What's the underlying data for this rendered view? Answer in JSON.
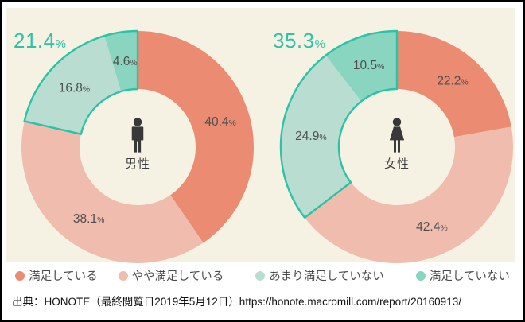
{
  "unit": "%",
  "palette": {
    "panel_background": "#F6F2E3",
    "satisfied": "#EB8B71",
    "somewhat_satisfied": "#EFBCAD",
    "not_very_satisfied": "#BADDD2",
    "not_satisfied": "#89D5C0",
    "highlight_outline": "#2BC3A5",
    "highlight_text": "#2EC3A5",
    "segment_label_text": "#4E4E4E",
    "icon_color": "#383838"
  },
  "chart_data": [
    {
      "type": "pie",
      "variant": "donut",
      "group_label": "男性",
      "icon": "male-icon",
      "start": "top",
      "direction": "clockwise",
      "segments": [
        {
          "label": "満足している",
          "value": 40.4,
          "color": "#EB8B71"
        },
        {
          "label": "やや満足している",
          "value": 38.1,
          "color": "#EFBCAD"
        },
        {
          "label": "あまり満足していない",
          "value": 16.8,
          "color": "#BADDD2"
        },
        {
          "label": "満足していない",
          "value": 4.6,
          "color": "#89D5C0"
        }
      ],
      "highlight": {
        "value": 21.4,
        "covers_last_n_segments": 2,
        "outline_color": "#2BC3A5"
      }
    },
    {
      "type": "pie",
      "variant": "donut",
      "group_label": "女性",
      "icon": "female-icon",
      "start": "top",
      "direction": "clockwise",
      "segments": [
        {
          "label": "満足している",
          "value": 22.2,
          "color": "#EB8B71"
        },
        {
          "label": "やや満足している",
          "value": 42.4,
          "color": "#EFBCAD"
        },
        {
          "label": "あまり満足していない",
          "value": 24.9,
          "color": "#BADDD2"
        },
        {
          "label": "満足していない",
          "value": 10.5,
          "color": "#89D5C0"
        }
      ],
      "highlight": {
        "value": 35.3,
        "covers_last_n_segments": 2,
        "outline_color": "#2BC3A5"
      }
    }
  ],
  "legend": {
    "items": [
      {
        "label": "満足している",
        "color": "#EB8B71"
      },
      {
        "label": "やや満足している",
        "color": "#EFBCAD"
      },
      {
        "label": "あまり満足していない",
        "color": "#BADDD2"
      },
      {
        "label": "満足していない",
        "color": "#89D5C0"
      }
    ]
  },
  "source": {
    "text": "出典：HONOTE（最終閲覧日2019年5月12日）https://honote.macromill.com/report/20160913/"
  }
}
